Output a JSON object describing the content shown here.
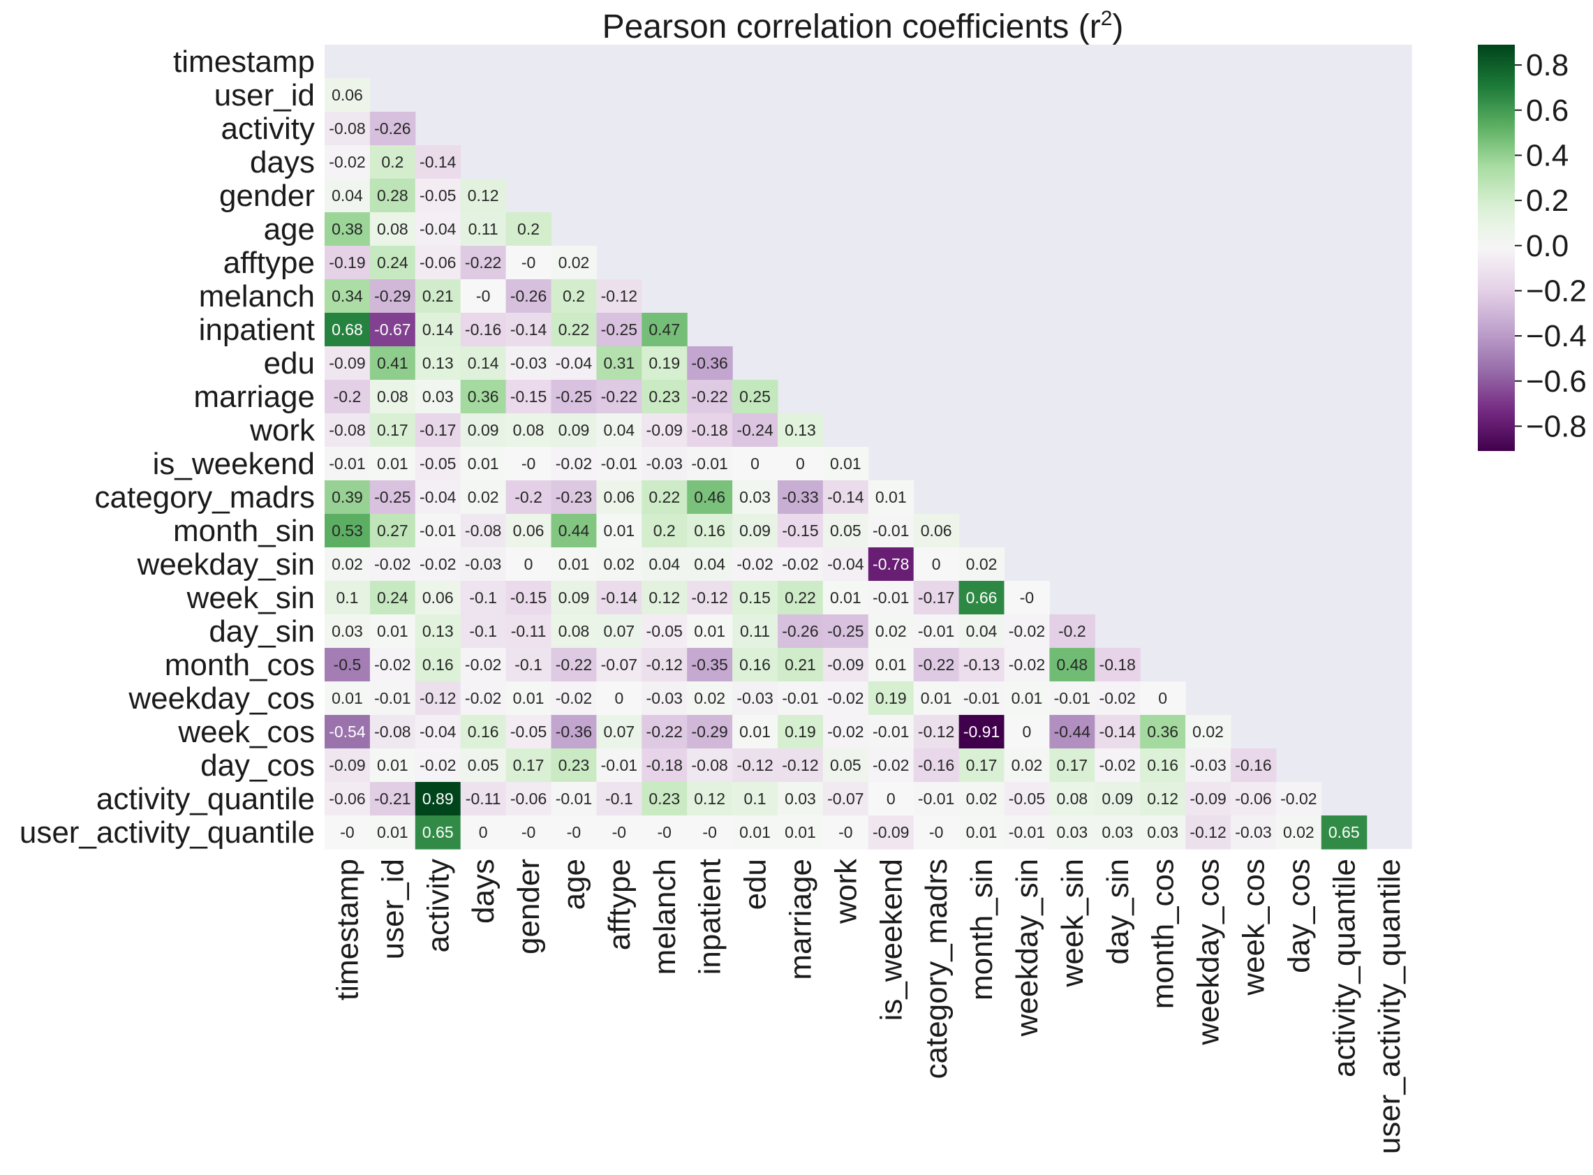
{
  "chart_data": {
    "type": "heatmap",
    "title": "Pearson correlation coefficients (r",
    "title_superscript": "2",
    "title_suffix": ")",
    "mask": "upper-triangle-and-diagonal",
    "colormap": "PRGn",
    "value_range": [
      -0.91,
      0.89
    ],
    "background_color": "#eaeaf2",
    "labels": [
      "timestamp",
      "user_id",
      "activity",
      "days",
      "gender",
      "age",
      "afftype",
      "melanch",
      "inpatient",
      "edu",
      "marriage",
      "work",
      "is_weekend",
      "category_madrs",
      "month_sin",
      "weekday_sin",
      "week_sin",
      "day_sin",
      "month_cos",
      "weekday_cos",
      "week_cos",
      "day_cos",
      "activity_quantile",
      "user_activity_quantile"
    ],
    "cell_text": [
      [],
      [
        "0.06"
      ],
      [
        "-0.08",
        "-0.26"
      ],
      [
        "-0.02",
        "0.2",
        "-0.14"
      ],
      [
        "0.04",
        "0.28",
        "-0.05",
        "0.12"
      ],
      [
        "0.38",
        "0.08",
        "-0.04",
        "0.11",
        "0.2"
      ],
      [
        "-0.19",
        "0.24",
        "-0.06",
        "-0.22",
        "-0",
        "0.02"
      ],
      [
        "0.34",
        "-0.29",
        "0.21",
        "-0",
        "-0.26",
        "0.2",
        "-0.12"
      ],
      [
        "0.68",
        "-0.67",
        "0.14",
        "-0.16",
        "-0.14",
        "0.22",
        "-0.25",
        "0.47"
      ],
      [
        "-0.09",
        "0.41",
        "0.13",
        "0.14",
        "-0.03",
        "-0.04",
        "0.31",
        "0.19",
        "-0.36"
      ],
      [
        "-0.2",
        "0.08",
        "0.03",
        "0.36",
        "-0.15",
        "-0.25",
        "-0.22",
        "0.23",
        "-0.22",
        "0.25"
      ],
      [
        "-0.08",
        "0.17",
        "-0.17",
        "0.09",
        "0.08",
        "0.09",
        "0.04",
        "-0.09",
        "-0.18",
        "-0.24",
        "0.13"
      ],
      [
        "-0.01",
        "0.01",
        "-0.05",
        "0.01",
        "-0",
        "-0.02",
        "-0.01",
        "-0.03",
        "-0.01",
        "0",
        "0",
        "0.01"
      ],
      [
        "0.39",
        "-0.25",
        "-0.04",
        "0.02",
        "-0.2",
        "-0.23",
        "0.06",
        "0.22",
        "0.46",
        "0.03",
        "-0.33",
        "-0.14",
        "0.01"
      ],
      [
        "0.53",
        "0.27",
        "-0.01",
        "-0.08",
        "0.06",
        "0.44",
        "0.01",
        "0.2",
        "0.16",
        "0.09",
        "-0.15",
        "0.05",
        "-0.01",
        "0.06"
      ],
      [
        "0.02",
        "-0.02",
        "-0.02",
        "-0.03",
        "0",
        "0.01",
        "0.02",
        "0.04",
        "0.04",
        "-0.02",
        "-0.02",
        "-0.04",
        "-0.78",
        "0",
        "0.02"
      ],
      [
        "0.1",
        "0.24",
        "0.06",
        "-0.1",
        "-0.15",
        "0.09",
        "-0.14",
        "0.12",
        "-0.12",
        "0.15",
        "0.22",
        "0.01",
        "-0.01",
        "-0.17",
        "0.66",
        "-0"
      ],
      [
        "0.03",
        "0.01",
        "0.13",
        "-0.1",
        "-0.11",
        "0.08",
        "0.07",
        "-0.05",
        "0.01",
        "0.11",
        "-0.26",
        "-0.25",
        "0.02",
        "-0.01",
        "0.04",
        "-0.02",
        "-0.2"
      ],
      [
        "-0.5",
        "-0.02",
        "0.16",
        "-0.02",
        "-0.1",
        "-0.22",
        "-0.07",
        "-0.12",
        "-0.35",
        "0.16",
        "0.21",
        "-0.09",
        "0.01",
        "-0.22",
        "-0.13",
        "-0.02",
        "0.48",
        "-0.18"
      ],
      [
        "0.01",
        "-0.01",
        "-0.12",
        "-0.02",
        "0.01",
        "-0.02",
        "0",
        "-0.03",
        "0.02",
        "-0.03",
        "-0.01",
        "-0.02",
        "0.19",
        "0.01",
        "-0.01",
        "0.01",
        "-0.01",
        "-0.02",
        "0"
      ],
      [
        "-0.54",
        "-0.08",
        "-0.04",
        "0.16",
        "-0.05",
        "-0.36",
        "0.07",
        "-0.22",
        "-0.29",
        "0.01",
        "0.19",
        "-0.02",
        "-0.01",
        "-0.12",
        "-0.91",
        "0",
        "-0.44",
        "-0.14",
        "0.36",
        "0.02"
      ],
      [
        "-0.09",
        "0.01",
        "-0.02",
        "0.05",
        "0.17",
        "0.23",
        "-0.01",
        "-0.18",
        "-0.08",
        "-0.12",
        "-0.12",
        "0.05",
        "-0.02",
        "-0.16",
        "0.17",
        "0.02",
        "0.17",
        "-0.02",
        "0.16",
        "-0.03",
        "-0.16"
      ],
      [
        "-0.06",
        "-0.21",
        "0.89",
        "-0.11",
        "-0.06",
        "-0.01",
        "-0.1",
        "0.23",
        "0.12",
        "0.1",
        "0.03",
        "-0.07",
        "0",
        "-0.01",
        "0.02",
        "-0.05",
        "0.08",
        "0.09",
        "0.12",
        "-0.09",
        "-0.06",
        "-0.02"
      ],
      [
        "-0",
        "0.01",
        "0.65",
        "0",
        "-0",
        "-0",
        "-0",
        "-0",
        "-0",
        "0.01",
        "0.01",
        "-0",
        "-0.09",
        "-0",
        "0.01",
        "-0.01",
        "0.03",
        "0.03",
        "0.03",
        "-0.12",
        "-0.03",
        "0.02",
        "0.65"
      ]
    ],
    "colorbar": {
      "ticks": [
        0.8,
        0.6,
        0.4,
        0.2,
        0.0,
        -0.2,
        -0.4,
        -0.6,
        -0.8
      ],
      "tick_labels": [
        "0.8",
        "0.6",
        "0.4",
        "0.2",
        "0.0",
        "−0.2",
        "−0.4",
        "−0.6",
        "−0.8"
      ]
    }
  }
}
